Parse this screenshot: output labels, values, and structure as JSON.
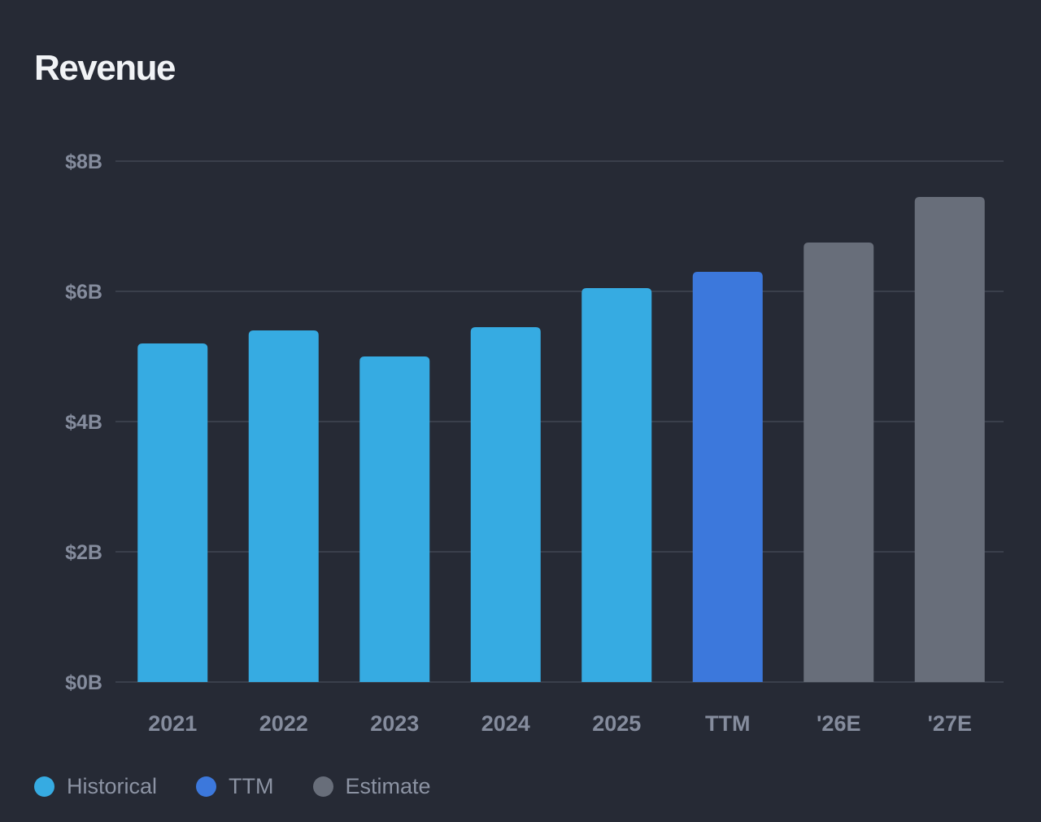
{
  "chart_data": {
    "type": "bar",
    "title": "Revenue",
    "categories": [
      "2021",
      "2022",
      "2023",
      "2024",
      "2025",
      "TTM",
      "'26E",
      "'27E"
    ],
    "values": [
      5.2,
      5.4,
      5.0,
      5.45,
      6.05,
      6.3,
      6.75,
      7.45
    ],
    "value_unit": "USD billions",
    "bar_groups": [
      "historical",
      "historical",
      "historical",
      "historical",
      "historical",
      "ttm",
      "estimate",
      "estimate"
    ],
    "ylim": [
      0,
      8
    ],
    "yticks": [
      0,
      2,
      4,
      6,
      8
    ],
    "ytick_labels": [
      "$0B",
      "$2B",
      "$4B",
      "$6B",
      "$8B"
    ],
    "xlabel": "",
    "ylabel": "",
    "grid": true,
    "legend_position": "bottom-left",
    "legend": [
      {
        "key": "historical",
        "label": "Historical",
        "color": "#36abe2"
      },
      {
        "key": "ttm",
        "label": "TTM",
        "color": "#3c78dc"
      },
      {
        "key": "estimate",
        "label": "Estimate",
        "color": "#686e7a"
      }
    ]
  },
  "colors": {
    "background": "#262a35",
    "grid": "#3a3f4b",
    "tick_text": "#858c9d",
    "title": "#f1f3f6"
  }
}
